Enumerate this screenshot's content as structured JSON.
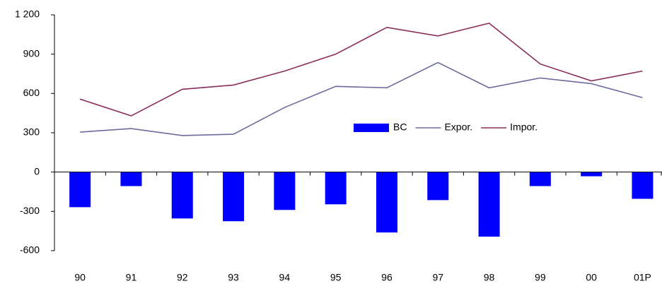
{
  "chart_data": {
    "type": "bar-line",
    "categories": [
      "90",
      "91",
      "92",
      "93",
      "94",
      "95",
      "96",
      "97",
      "98",
      "99",
      "00",
      "01P"
    ],
    "series": [
      {
        "name": "BC",
        "type": "bar",
        "color": "#0000ff",
        "values": [
          -268,
          -107,
          -354,
          -375,
          -289,
          -246,
          -461,
          -214,
          -493,
          -107,
          -32,
          -204
        ]
      },
      {
        "name": "Expor.",
        "type": "line",
        "color": "#6b6b9e",
        "values": [
          305,
          332,
          279,
          289,
          493,
          654,
          643,
          836,
          643,
          718,
          675,
          568
        ]
      },
      {
        "name": "Impor.",
        "type": "line",
        "color": "#8b2d5b",
        "values": [
          557,
          429,
          632,
          664,
          771,
          900,
          1104,
          1039,
          1136,
          825,
          696,
          771
        ]
      }
    ],
    "ylim": [
      -600,
      1200
    ],
    "yticks": [
      -600,
      -300,
      0,
      300,
      600,
      900,
      {
        "value": 1200,
        "label": "1 200"
      }
    ],
    "grid": false
  }
}
